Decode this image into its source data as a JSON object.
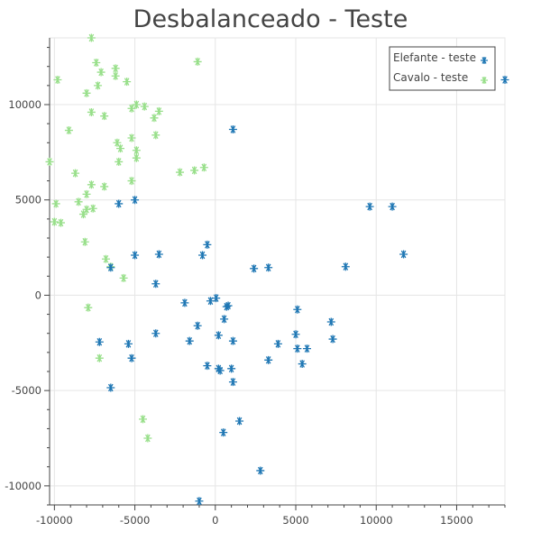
{
  "chart_data": {
    "type": "scatter",
    "title": "Desbalanceado - Teste",
    "xlabel": "",
    "ylabel": "",
    "xlim": [
      -10300,
      18000
    ],
    "ylim": [
      -11000,
      13500
    ],
    "x_ticks": [
      -10000,
      -5000,
      0,
      5000,
      10000,
      15000
    ],
    "y_ticks": [
      -10000,
      -5000,
      0,
      5000,
      10000
    ],
    "grid": true,
    "legend_position": "top-right",
    "marker": "asterisk",
    "series": [
      {
        "name": "Elefante - teste",
        "color": "#1f77b4",
        "points": [
          [
            18000,
            11300
          ],
          [
            1100,
            8700
          ],
          [
            -6000,
            4800
          ],
          [
            -5000,
            5000
          ],
          [
            9600,
            4650
          ],
          [
            11000,
            4650
          ],
          [
            11700,
            2150
          ],
          [
            8100,
            1500
          ],
          [
            -6500,
            1450
          ],
          [
            -5000,
            2100
          ],
          [
            -3500,
            2150
          ],
          [
            -500,
            2650
          ],
          [
            -800,
            2100
          ],
          [
            2400,
            1400
          ],
          [
            3300,
            1450
          ],
          [
            -3700,
            600
          ],
          [
            -1900,
            -400
          ],
          [
            -300,
            -300
          ],
          [
            50,
            -150
          ],
          [
            800,
            -550
          ],
          [
            700,
            -600
          ],
          [
            5100,
            -750
          ],
          [
            550,
            -1250
          ],
          [
            7200,
            -1400
          ],
          [
            -1100,
            -1600
          ],
          [
            -7200,
            -2450
          ],
          [
            -5400,
            -2550
          ],
          [
            -3700,
            -2000
          ],
          [
            -1600,
            -2400
          ],
          [
            200,
            -2100
          ],
          [
            1100,
            -2400
          ],
          [
            3900,
            -2550
          ],
          [
            5000,
            -2050
          ],
          [
            7300,
            -2300
          ],
          [
            5100,
            -2800
          ],
          [
            5700,
            -2800
          ],
          [
            -5200,
            -3300
          ],
          [
            3300,
            -3400
          ],
          [
            5400,
            -3600
          ],
          [
            -500,
            -3700
          ],
          [
            200,
            -3850
          ],
          [
            300,
            -3950
          ],
          [
            1000,
            -3850
          ],
          [
            1100,
            -4550
          ],
          [
            -6500,
            -4850
          ],
          [
            1500,
            -6600
          ],
          [
            500,
            -7200
          ],
          [
            2800,
            -9200
          ],
          [
            -1000,
            -10800
          ]
        ]
      },
      {
        "name": "Cavalo - teste",
        "color": "#98df8a",
        "points": [
          [
            -7700,
            13500
          ],
          [
            -7400,
            12200
          ],
          [
            -6200,
            11900
          ],
          [
            -1100,
            12250
          ],
          [
            -9800,
            11300
          ],
          [
            -7100,
            11700
          ],
          [
            -6200,
            11500
          ],
          [
            -5500,
            11200
          ],
          [
            -8000,
            10600
          ],
          [
            -7300,
            11000
          ],
          [
            -4900,
            10000
          ],
          [
            -4400,
            9900
          ],
          [
            -5200,
            9800
          ],
          [
            -7700,
            9600
          ],
          [
            -6900,
            9400
          ],
          [
            -3500,
            9650
          ],
          [
            -3800,
            9300
          ],
          [
            -3700,
            8400
          ],
          [
            -9100,
            8650
          ],
          [
            -5200,
            8250
          ],
          [
            -6100,
            8000
          ],
          [
            -5900,
            7700
          ],
          [
            -4900,
            7600
          ],
          [
            -4900,
            7200
          ],
          [
            -6000,
            7000
          ],
          [
            -10300,
            7000
          ],
          [
            -2200,
            6450
          ],
          [
            -1300,
            6550
          ],
          [
            -700,
            6700
          ],
          [
            -8700,
            6400
          ],
          [
            -5200,
            6000
          ],
          [
            -7700,
            5800
          ],
          [
            -6900,
            5700
          ],
          [
            -8000,
            5300
          ],
          [
            -9900,
            4800
          ],
          [
            -8500,
            4900
          ],
          [
            -8000,
            4500
          ],
          [
            -7600,
            4550
          ],
          [
            -8200,
            4250
          ],
          [
            -10000,
            3850
          ],
          [
            -9600,
            3800
          ],
          [
            -8100,
            2800
          ],
          [
            -6800,
            1900
          ],
          [
            -6500,
            1500
          ],
          [
            -5700,
            900
          ],
          [
            -7900,
            -650
          ],
          [
            -7200,
            -3300
          ],
          [
            -4500,
            -6500
          ],
          [
            -4200,
            -7500
          ]
        ]
      }
    ]
  }
}
